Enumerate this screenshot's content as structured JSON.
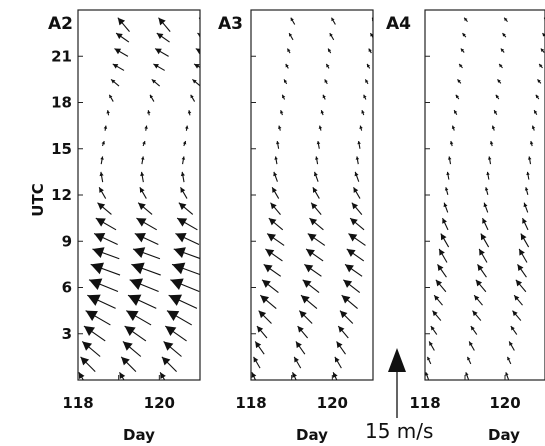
{
  "chart_data": {
    "type": "vector-time-series",
    "description_units": {
      "x": "Day",
      "y": "UTC hour",
      "vector": "m/s"
    },
    "ylabel": "UTC",
    "yticks": [
      3,
      6,
      9,
      12,
      15,
      18,
      21
    ],
    "ylim": [
      0,
      24
    ],
    "scale_vector": {
      "label": "15 m/s",
      "speed": 15,
      "direction_deg": 0
    },
    "panels": [
      {
        "title": "A2",
        "xlabel": "Day",
        "xticks": [
          118,
          120
        ],
        "xlim": [
          118,
          121
        ],
        "day_starts": [
          118,
          119,
          120
        ],
        "samples": [
          {
            "hour": 0.5,
            "speed": 6,
            "dir": 150
          },
          {
            "hour": 1.5,
            "speed": 8,
            "dir": 135
          },
          {
            "hour": 2.5,
            "speed": 9,
            "dir": 130
          },
          {
            "hour": 3.5,
            "speed": 10,
            "dir": 125
          },
          {
            "hour": 4.5,
            "speed": 11,
            "dir": 120
          },
          {
            "hour": 5.5,
            "speed": 12,
            "dir": 115
          },
          {
            "hour": 6.5,
            "speed": 12,
            "dir": 112
          },
          {
            "hour": 7.5,
            "speed": 12,
            "dir": 110
          },
          {
            "hour": 8.5,
            "speed": 11,
            "dir": 110
          },
          {
            "hour": 9.5,
            "speed": 10,
            "dir": 115
          },
          {
            "hour": 10.5,
            "speed": 9,
            "dir": 120
          },
          {
            "hour": 11.5,
            "speed": 7,
            "dir": 130
          },
          {
            "hour": 12.5,
            "speed": 5,
            "dir": 150
          },
          {
            "hour": 13.5,
            "speed": 4,
            "dir": 170
          },
          {
            "hour": 14.5,
            "speed": 3,
            "dir": 190
          },
          {
            "hour": 15.5,
            "speed": 2,
            "dir": 200
          },
          {
            "hour": 16.5,
            "speed": 2,
            "dir": 190
          },
          {
            "hour": 17.5,
            "speed": 2,
            "dir": 170
          },
          {
            "hour": 18.5,
            "speed": 3,
            "dir": 150
          },
          {
            "hour": 19.5,
            "speed": 4,
            "dir": 130
          },
          {
            "hour": 20.5,
            "speed": 5,
            "dir": 120
          },
          {
            "hour": 21.5,
            "speed": 6,
            "dir": 120
          },
          {
            "hour": 22.5,
            "speed": 6,
            "dir": 125
          },
          {
            "hour": 23.5,
            "speed": 7,
            "dir": 140
          }
        ]
      },
      {
        "title": "A3",
        "xlabel": "Day",
        "xticks": [
          118,
          120
        ],
        "xlim": [
          118,
          121
        ],
        "day_starts": [
          118,
          119,
          120
        ],
        "samples": [
          {
            "hour": 0.5,
            "speed": 5,
            "dir": 155
          },
          {
            "hour": 1.5,
            "speed": 5,
            "dir": 150
          },
          {
            "hour": 2.5,
            "speed": 6,
            "dir": 145
          },
          {
            "hour": 3.5,
            "speed": 6,
            "dir": 140
          },
          {
            "hour": 4.5,
            "speed": 7,
            "dir": 135
          },
          {
            "hour": 5.5,
            "speed": 8,
            "dir": 130
          },
          {
            "hour": 6.5,
            "speed": 8,
            "dir": 128
          },
          {
            "hour": 7.5,
            "speed": 8,
            "dir": 125
          },
          {
            "hour": 8.5,
            "speed": 8,
            "dir": 125
          },
          {
            "hour": 9.5,
            "speed": 8,
            "dir": 125
          },
          {
            "hour": 10.5,
            "speed": 7,
            "dir": 130
          },
          {
            "hour": 11.5,
            "speed": 6,
            "dir": 140
          },
          {
            "hour": 12.5,
            "speed": 5,
            "dir": 150
          },
          {
            "hour": 13.5,
            "speed": 4,
            "dir": 160
          },
          {
            "hour": 14.5,
            "speed": 3,
            "dir": 170
          },
          {
            "hour": 15.5,
            "speed": 3,
            "dir": 170
          },
          {
            "hour": 16.5,
            "speed": 2,
            "dir": 165
          },
          {
            "hour": 17.5,
            "speed": 2,
            "dir": 160
          },
          {
            "hour": 18.5,
            "speed": 2,
            "dir": 155
          },
          {
            "hour": 19.5,
            "speed": 2,
            "dir": 150
          },
          {
            "hour": 20.5,
            "speed": 2,
            "dir": 150
          },
          {
            "hour": 21.5,
            "speed": 2,
            "dir": 150
          },
          {
            "hour": 22.5,
            "speed": 3,
            "dir": 150
          },
          {
            "hour": 23.5,
            "speed": 3,
            "dir": 150
          }
        ]
      },
      {
        "title": "A4",
        "xlabel": "Day",
        "xticks": [
          118,
          120
        ],
        "xlim": [
          118,
          121
        ],
        "day_starts": [
          118,
          119,
          120
        ],
        "samples": [
          {
            "hour": 0.5,
            "speed": 3,
            "dir": 160
          },
          {
            "hour": 1.5,
            "speed": 3,
            "dir": 155
          },
          {
            "hour": 2.5,
            "speed": 4,
            "dir": 150
          },
          {
            "hour": 3.5,
            "speed": 4,
            "dir": 145
          },
          {
            "hour": 4.5,
            "speed": 5,
            "dir": 140
          },
          {
            "hour": 5.5,
            "speed": 5,
            "dir": 140
          },
          {
            "hour": 6.5,
            "speed": 6,
            "dir": 140
          },
          {
            "hour": 7.5,
            "speed": 6,
            "dir": 145
          },
          {
            "hour": 8.5,
            "speed": 6,
            "dir": 150
          },
          {
            "hour": 9.5,
            "speed": 6,
            "dir": 150
          },
          {
            "hour": 10.5,
            "speed": 5,
            "dir": 155
          },
          {
            "hour": 11.5,
            "speed": 4,
            "dir": 160
          },
          {
            "hour": 12.5,
            "speed": 3,
            "dir": 165
          },
          {
            "hour": 13.5,
            "speed": 3,
            "dir": 170
          },
          {
            "hour": 14.5,
            "speed": 3,
            "dir": 170
          },
          {
            "hour": 15.5,
            "speed": 2,
            "dir": 165
          },
          {
            "hour": 16.5,
            "speed": 2,
            "dir": 160
          },
          {
            "hour": 17.5,
            "speed": 2,
            "dir": 150
          },
          {
            "hour": 18.5,
            "speed": 2,
            "dir": 145
          },
          {
            "hour": 19.5,
            "speed": 2,
            "dir": 140
          },
          {
            "hour": 20.5,
            "speed": 2,
            "dir": 140
          },
          {
            "hour": 21.5,
            "speed": 2,
            "dir": 140
          },
          {
            "hour": 22.5,
            "speed": 2,
            "dir": 140
          },
          {
            "hour": 23.5,
            "speed": 2,
            "dir": 140
          }
        ]
      }
    ]
  }
}
